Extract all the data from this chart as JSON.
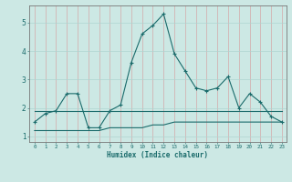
{
  "xlabel": "Humidex (Indice chaleur)",
  "bg_color": "#cce8e4",
  "grid_color": "#aed4d0",
  "line_color": "#1a6b6b",
  "xlim": [
    -0.5,
    23.4
  ],
  "ylim": [
    0.8,
    5.6
  ],
  "xticks": [
    0,
    1,
    2,
    3,
    4,
    5,
    6,
    7,
    8,
    9,
    10,
    11,
    12,
    13,
    14,
    15,
    16,
    17,
    18,
    19,
    20,
    21,
    22,
    23
  ],
  "yticks": [
    1,
    2,
    3,
    4,
    5
  ],
  "series1_x": [
    0,
    1,
    2,
    3,
    4,
    5,
    6,
    7,
    8,
    9,
    10,
    11,
    12,
    13,
    14,
    15,
    16,
    17,
    18,
    19,
    20,
    21,
    22,
    23
  ],
  "series1_y": [
    1.5,
    1.8,
    1.9,
    2.5,
    2.5,
    1.3,
    1.3,
    1.9,
    2.1,
    3.6,
    4.6,
    4.9,
    5.3,
    3.9,
    3.3,
    2.7,
    2.6,
    2.7,
    3.1,
    2.0,
    2.5,
    2.2,
    1.7,
    1.5
  ],
  "series2_x": [
    0,
    1,
    2,
    3,
    4,
    5,
    6,
    7,
    8,
    9,
    10,
    11,
    12,
    13,
    14,
    15,
    16,
    17,
    18,
    19,
    20,
    21,
    22,
    23
  ],
  "series2_y": [
    1.9,
    1.9,
    1.9,
    1.9,
    1.9,
    1.9,
    1.9,
    1.9,
    1.9,
    1.9,
    1.9,
    1.9,
    1.9,
    1.9,
    1.9,
    1.9,
    1.9,
    1.9,
    1.9,
    1.9,
    1.9,
    1.9,
    1.9,
    1.9
  ],
  "series3_x": [
    0,
    1,
    2,
    3,
    4,
    5,
    6,
    7,
    8,
    9,
    10,
    11,
    12,
    13,
    14,
    15,
    16,
    17,
    18,
    19,
    20,
    21,
    22,
    23
  ],
  "series3_y": [
    1.2,
    1.2,
    1.2,
    1.2,
    1.2,
    1.2,
    1.2,
    1.3,
    1.3,
    1.3,
    1.3,
    1.4,
    1.4,
    1.5,
    1.5,
    1.5,
    1.5,
    1.5,
    1.5,
    1.5,
    1.5,
    1.5,
    1.5,
    1.5
  ]
}
